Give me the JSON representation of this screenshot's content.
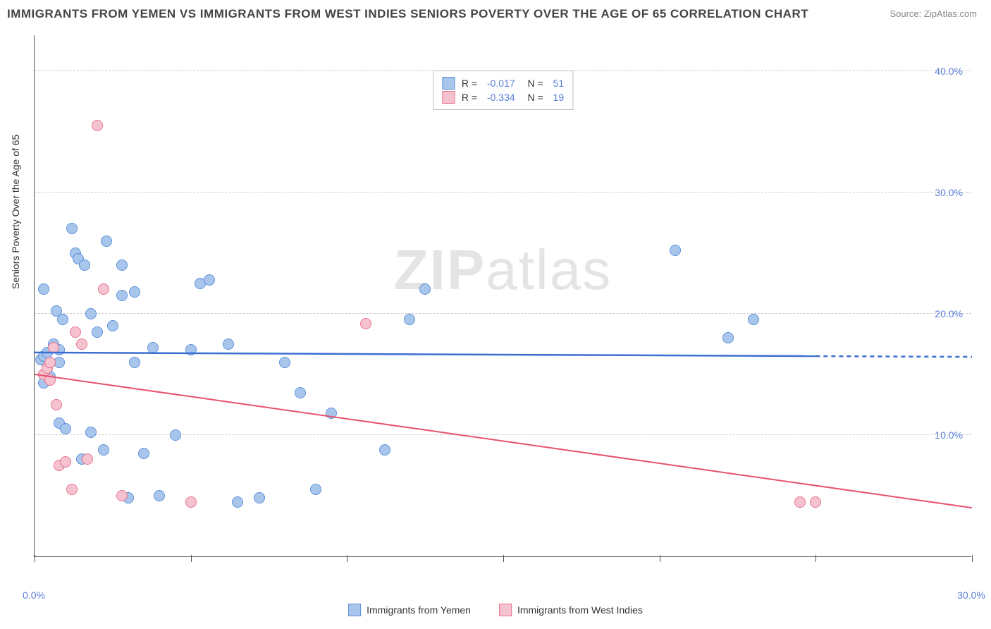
{
  "title": "IMMIGRANTS FROM YEMEN VS IMMIGRANTS FROM WEST INDIES SENIORS POVERTY OVER THE AGE OF 65 CORRELATION CHART",
  "source": "Source: ZipAtlas.com",
  "watermark_a": "ZIP",
  "watermark_b": "atlas",
  "chart": {
    "type": "scatter",
    "xlim": [
      0,
      30
    ],
    "ylim": [
      0,
      43
    ],
    "xtick_positions": [
      0,
      5,
      10,
      15,
      20,
      25,
      30
    ],
    "xtick_labels_shown": {
      "0": "0.0%",
      "30": "30.0%"
    },
    "ytick_positions": [
      0,
      10,
      20,
      30,
      40
    ],
    "ytick_labels_shown": {
      "10": "10.0%",
      "20": "20.0%",
      "30": "30.0%",
      "40": "40.0%"
    },
    "y_axis_title": "Seniors Poverty Over the Age of 65",
    "grid_color": "#cccccc",
    "axis_color": "#555555",
    "label_color": "#5a7fd8",
    "background_color": "#ffffff",
    "marker_radius": 8,
    "marker_stroke_width": 1.5,
    "marker_fill_opacity": 0.35,
    "series": [
      {
        "name": "Immigrants from Yemen",
        "fill": "#a8c5ec",
        "stroke": "#5a8fd8",
        "R": "-0.017",
        "N": "51",
        "trend": {
          "x1": 0,
          "y1": 16.8,
          "x2": 25,
          "y2": 16.5,
          "dash_from_x": 25,
          "dash_to_x": 30,
          "line_width": 2.5,
          "color": "#3b6fd0"
        },
        "points": [
          [
            0.2,
            16.2
          ],
          [
            0.3,
            15.0
          ],
          [
            0.3,
            14.3
          ],
          [
            0.3,
            16.5
          ],
          [
            0.4,
            16.8
          ],
          [
            0.4,
            15.5
          ],
          [
            0.5,
            14.8
          ],
          [
            0.6,
            17.5
          ],
          [
            0.7,
            20.2
          ],
          [
            0.8,
            17.0
          ],
          [
            0.8,
            16.0
          ],
          [
            0.8,
            11.0
          ],
          [
            0.9,
            19.5
          ],
          [
            1.0,
            10.5
          ],
          [
            1.2,
            27.0
          ],
          [
            1.3,
            25.0
          ],
          [
            1.4,
            24.5
          ],
          [
            1.5,
            8.0
          ],
          [
            1.6,
            24.0
          ],
          [
            1.8,
            10.2
          ],
          [
            1.8,
            20.0
          ],
          [
            2.0,
            18.5
          ],
          [
            2.2,
            8.8
          ],
          [
            2.3,
            26.0
          ],
          [
            2.5,
            19.0
          ],
          [
            2.8,
            21.5
          ],
          [
            2.8,
            24.0
          ],
          [
            3.0,
            4.8
          ],
          [
            3.2,
            16.0
          ],
          [
            3.2,
            21.8
          ],
          [
            3.5,
            8.5
          ],
          [
            3.8,
            17.2
          ],
          [
            4.0,
            5.0
          ],
          [
            4.5,
            10.0
          ],
          [
            5.0,
            17.0
          ],
          [
            5.3,
            22.5
          ],
          [
            5.6,
            22.8
          ],
          [
            6.2,
            17.5
          ],
          [
            6.5,
            4.5
          ],
          [
            7.2,
            4.8
          ],
          [
            8.0,
            16.0
          ],
          [
            8.5,
            13.5
          ],
          [
            9.0,
            5.5
          ],
          [
            9.5,
            11.8
          ],
          [
            11.2,
            8.8
          ],
          [
            12.0,
            19.5
          ],
          [
            12.5,
            22.0
          ],
          [
            20.5,
            25.2
          ],
          [
            23.0,
            19.5
          ],
          [
            22.2,
            18.0
          ],
          [
            0.3,
            22.0
          ]
        ]
      },
      {
        "name": "Immigrants from West Indies",
        "fill": "#f5c2cf",
        "stroke": "#e8718e",
        "R": "-0.334",
        "N": "19",
        "trend": {
          "x1": 0,
          "y1": 15.0,
          "x2": 30,
          "y2": 4.0,
          "line_width": 2,
          "color": "#e8516e"
        },
        "points": [
          [
            0.3,
            15.0
          ],
          [
            0.4,
            15.5
          ],
          [
            0.5,
            14.5
          ],
          [
            0.5,
            16.0
          ],
          [
            0.6,
            17.2
          ],
          [
            0.7,
            12.5
          ],
          [
            0.8,
            7.5
          ],
          [
            1.0,
            7.8
          ],
          [
            1.2,
            5.5
          ],
          [
            1.3,
            18.5
          ],
          [
            1.5,
            17.5
          ],
          [
            1.7,
            8.0
          ],
          [
            2.0,
            35.5
          ],
          [
            2.2,
            22.0
          ],
          [
            2.8,
            5.0
          ],
          [
            5.0,
            4.5
          ],
          [
            10.6,
            19.2
          ],
          [
            24.5,
            4.5
          ],
          [
            25.0,
            4.5
          ]
        ]
      }
    ]
  },
  "legend_bottom": [
    {
      "label": "Immigrants from Yemen",
      "fill": "#a8c5ec",
      "stroke": "#5a8fd8"
    },
    {
      "label": "Immigrants from West Indies",
      "fill": "#f5c2cf",
      "stroke": "#e8718e"
    }
  ]
}
